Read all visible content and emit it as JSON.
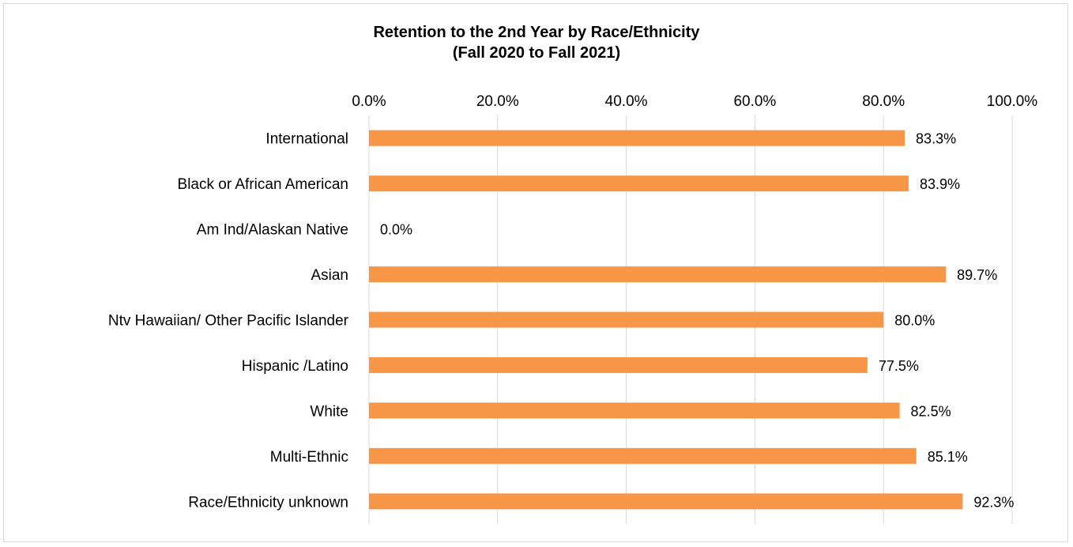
{
  "chart_data": {
    "type": "bar",
    "orientation": "horizontal",
    "title": "Retention to the 2nd Year by Race/Ethnicity",
    "subtitle": "(Fall 2020 to Fall 2021)",
    "categories": [
      "International",
      "Black or African American",
      "Am Ind/Alaskan Native",
      "Asian",
      "Ntv Hawaiian/ Other Pacific Islander",
      "Hispanic /Latino",
      "White",
      "Multi-Ethnic",
      "Race/Ethnicity unknown"
    ],
    "values": [
      83.3,
      83.9,
      0.0,
      89.7,
      80.0,
      77.5,
      82.5,
      85.1,
      92.3
    ],
    "data_labels": [
      "83.3%",
      "83.9%",
      "0.0%",
      "89.7%",
      "80.0%",
      "77.5%",
      "82.5%",
      "85.1%",
      "92.3%"
    ],
    "xlim": [
      0,
      100
    ],
    "x_ticks": [
      "0.0%",
      "20.0%",
      "40.0%",
      "60.0%",
      "80.0%",
      "100.0%"
    ],
    "x_axis_position": "top",
    "grid": true,
    "colors": {
      "bar": "#f79646",
      "grid": "#d9d9d9"
    }
  }
}
